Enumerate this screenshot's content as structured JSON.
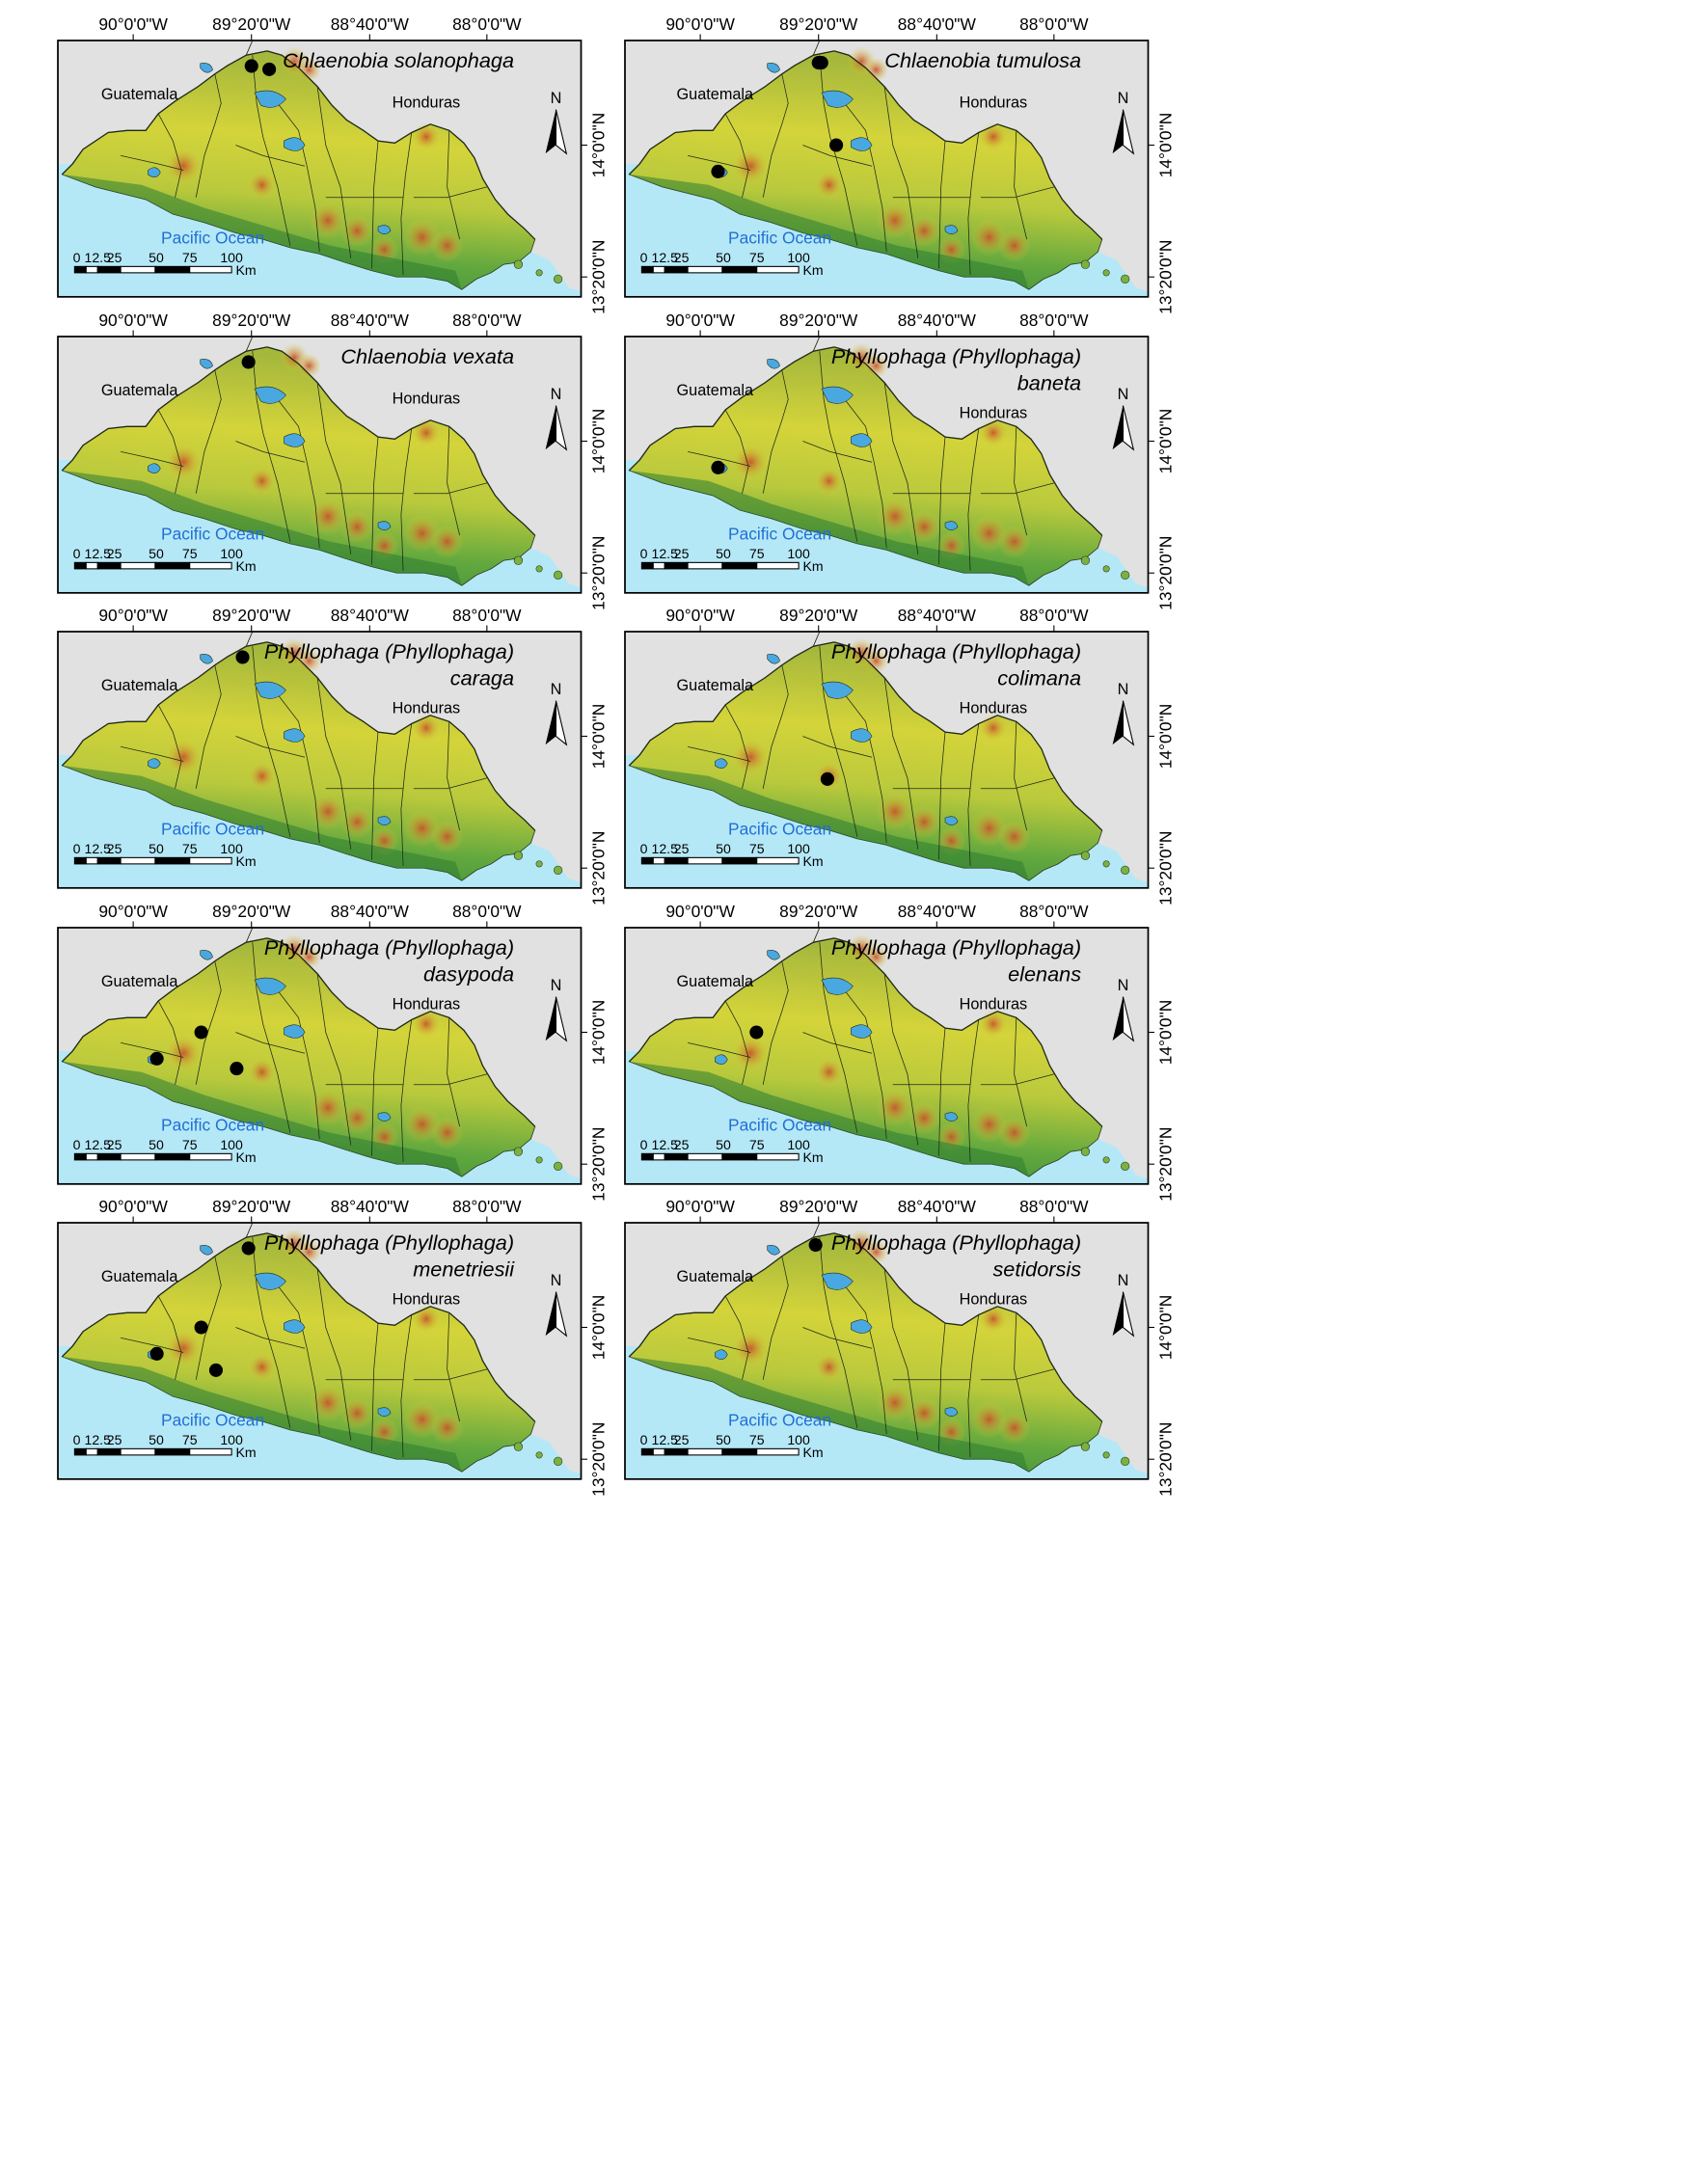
{
  "graticule": {
    "lon_labels": [
      "90°0'0\"W",
      "89°20'0\"W",
      "88°40'0\"W",
      "88°0'0\"W"
    ],
    "lat_labels": [
      "14°0'0\"N",
      "13°20'0\"N"
    ]
  },
  "common_labels": {
    "guatemala": "Guatemala",
    "honduras": "Honduras",
    "ocean": "Pacific Ocean",
    "north": "N"
  },
  "scale_bar": {
    "ticks": [
      "0",
      "12.5",
      "25",
      "50",
      "75",
      "100"
    ],
    "unit": "Km"
  },
  "colors": {
    "ocean": "#b5e8f7",
    "land_low": "#3d8f3a",
    "land_mid": "#d4d43a",
    "land_high": "#c8502a",
    "background": "#e1e1e1",
    "points": "#000000"
  },
  "panels": [
    {
      "title_lines": [
        "Chlaenobia solanophaga"
      ],
      "localities": [
        [
          "89°20'W",
          "14°24'N"
        ],
        [
          "89°14'W",
          "14°23'N"
        ]
      ]
    },
    {
      "title_lines": [
        "Chlaenobia tumulosa"
      ],
      "localities": [
        [
          "89°20'W",
          "14°25'N"
        ],
        [
          "89°19'W",
          "14°25'N"
        ],
        [
          "89°14'W",
          "14°00'N"
        ],
        [
          "89°54'W",
          "13°52'N"
        ]
      ]
    },
    {
      "title_lines": [
        "Chlaenobia vexata"
      ],
      "localities": [
        [
          "89°21'W",
          "14°24'N"
        ]
      ]
    },
    {
      "title_lines": [
        "Phyllophaga (Phyllophaga)",
        "baneta"
      ],
      "localities": [
        [
          "89°54'W",
          "13°52'N"
        ]
      ]
    },
    {
      "title_lines": [
        "Phyllophaga (Phyllophaga)",
        "caraga"
      ],
      "localities": [
        [
          "89°23'W",
          "14°24'N"
        ]
      ]
    },
    {
      "title_lines": [
        "Phyllophaga (Phyllophaga)",
        "colimana"
      ],
      "localities": [
        [
          "89°17'W",
          "13°47'N"
        ]
      ]
    },
    {
      "title_lines": [
        "Phyllophaga (Phyllophaga)",
        "dasypoda"
      ],
      "localities": [
        [
          "89°37'W",
          "14°00'N"
        ],
        [
          "89°52'W",
          "13°52'N"
        ],
        [
          "89°25'W",
          "13°49'N"
        ]
      ]
    },
    {
      "title_lines": [
        "Phyllophaga (Phyllophaga)",
        "elenans"
      ],
      "localities": [
        [
          "89°41'W",
          "14°00'N"
        ]
      ]
    },
    {
      "title_lines": [
        "Phyllophaga (Phyllophaga)",
        "menetriesii"
      ],
      "localities": [
        [
          "89°21'W",
          "14°24'N"
        ],
        [
          "89°37'W",
          "14°00'N"
        ],
        [
          "89°52'W",
          "13°52'N"
        ],
        [
          "89°32'W",
          "13°47'N"
        ]
      ]
    },
    {
      "title_lines": [
        "Phyllophaga (Phyllophaga)",
        "setidorsis"
      ],
      "localities": [
        [
          "89°21'W",
          "14°25'N"
        ]
      ]
    }
  ]
}
